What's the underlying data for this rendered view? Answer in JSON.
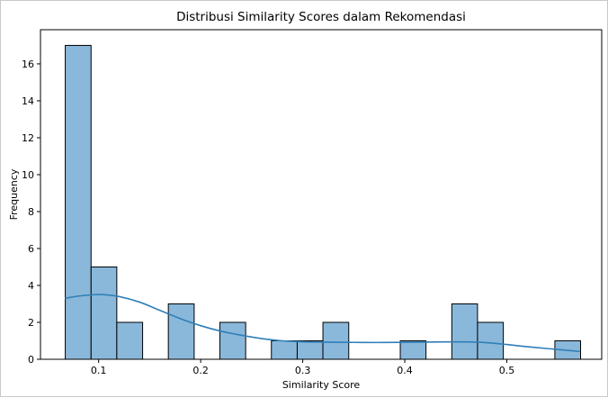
{
  "chart_data": {
    "type": "bar",
    "subtype": "histogram-with-kde",
    "title": "Distribusi Similarity Scores dalam Rekomendasi",
    "xlabel": "Similarity Score",
    "ylabel": "Frequency",
    "xlim": [
      0.043,
      0.593
    ],
    "ylim": [
      0,
      17.85
    ],
    "xticks": [
      0.1,
      0.2,
      0.3,
      0.4,
      0.5
    ],
    "xtick_labels": [
      "0.1",
      "0.2",
      "0.3",
      "0.4",
      "0.5"
    ],
    "yticks": [
      0,
      2,
      4,
      6,
      8,
      10,
      12,
      14,
      16
    ],
    "ytick_labels": [
      "0",
      "2",
      "4",
      "6",
      "8",
      "10",
      "12",
      "14",
      "16"
    ],
    "bin_width": 0.02525,
    "bins": [
      {
        "start": 0.0673,
        "end": 0.0926,
        "count": 17
      },
      {
        "start": 0.0926,
        "end": 0.1178,
        "count": 5
      },
      {
        "start": 0.1178,
        "end": 0.1431,
        "count": 2
      },
      {
        "start": 0.1431,
        "end": 0.1683,
        "count": 0
      },
      {
        "start": 0.1683,
        "end": 0.1936,
        "count": 3
      },
      {
        "start": 0.1936,
        "end": 0.2188,
        "count": 0
      },
      {
        "start": 0.2188,
        "end": 0.2441,
        "count": 2
      },
      {
        "start": 0.2441,
        "end": 0.2693,
        "count": 0
      },
      {
        "start": 0.2693,
        "end": 0.2946,
        "count": 1
      },
      {
        "start": 0.2946,
        "end": 0.3198,
        "count": 1
      },
      {
        "start": 0.3198,
        "end": 0.3451,
        "count": 2
      },
      {
        "start": 0.3451,
        "end": 0.3703,
        "count": 0
      },
      {
        "start": 0.3703,
        "end": 0.3956,
        "count": 0
      },
      {
        "start": 0.3956,
        "end": 0.4208,
        "count": 1
      },
      {
        "start": 0.4208,
        "end": 0.4461,
        "count": 0
      },
      {
        "start": 0.4461,
        "end": 0.4713,
        "count": 3
      },
      {
        "start": 0.4713,
        "end": 0.4966,
        "count": 2
      },
      {
        "start": 0.4966,
        "end": 0.5218,
        "count": 0
      },
      {
        "start": 0.5218,
        "end": 0.5471,
        "count": 0
      },
      {
        "start": 0.5471,
        "end": 0.5723,
        "count": 1
      }
    ],
    "kde": {
      "x": [
        0.067,
        0.08,
        0.095,
        0.105,
        0.12,
        0.14,
        0.16,
        0.18,
        0.2,
        0.22,
        0.24,
        0.26,
        0.28,
        0.3,
        0.32,
        0.34,
        0.36,
        0.38,
        0.4,
        0.42,
        0.44,
        0.46,
        0.48,
        0.5,
        0.52,
        0.54,
        0.572
      ],
      "y": [
        3.3,
        3.42,
        3.5,
        3.5,
        3.4,
        3.1,
        2.65,
        2.2,
        1.82,
        1.52,
        1.3,
        1.12,
        1.0,
        0.95,
        0.93,
        0.92,
        0.91,
        0.91,
        0.92,
        0.93,
        0.94,
        0.94,
        0.9,
        0.8,
        0.68,
        0.58,
        0.42
      ]
    },
    "grid": false,
    "colors": {
      "bar_fill": "#8ab8da",
      "bar_edge": "#000000",
      "kde_line": "#2f7fb8",
      "axis": "#000000",
      "frame_border": "#c8c8c8"
    }
  }
}
